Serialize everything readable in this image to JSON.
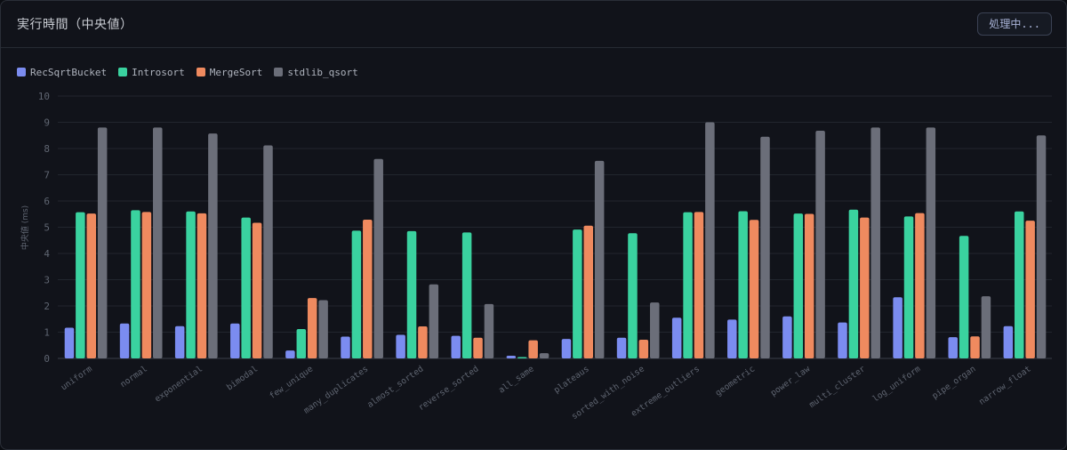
{
  "header": {
    "title": "実行時間（中央値）",
    "status_button": "処理中..."
  },
  "chart_data": {
    "type": "bar",
    "ylabel": "中央値 (ms)",
    "ylim": [
      0,
      10
    ],
    "yticks": [
      0,
      1,
      2,
      3,
      4,
      5,
      6,
      7,
      8,
      9,
      10
    ],
    "grid": true,
    "legend_position": "top-left",
    "categories": [
      "uniform",
      "normal",
      "exponential",
      "bimodal",
      "few_unique",
      "many_duplicates",
      "almost_sorted",
      "reverse_sorted",
      "all_same",
      "plateaus",
      "sorted_with_noise",
      "extreme_outliers",
      "geometric",
      "power_law",
      "multi_cluster",
      "log_uniform",
      "pipe_organ",
      "narrow_float"
    ],
    "series": [
      {
        "name": "RecSqrtBucket",
        "color": "#7b8cf0",
        "values": [
          1.17,
          1.33,
          1.23,
          1.33,
          0.3,
          0.83,
          0.9,
          0.86,
          0.1,
          0.74,
          0.79,
          1.55,
          1.48,
          1.6,
          1.37,
          2.33,
          0.81,
          1.23
        ]
      },
      {
        "name": "Introsort",
        "color": "#3ad29f",
        "values": [
          5.57,
          5.65,
          5.6,
          5.37,
          1.12,
          4.87,
          4.85,
          4.8,
          0.05,
          4.91,
          4.77,
          5.57,
          5.61,
          5.52,
          5.67,
          5.41,
          4.67,
          5.6
        ]
      },
      {
        "name": "MergeSort",
        "color": "#ef8a5f",
        "values": [
          5.52,
          5.58,
          5.53,
          5.17,
          2.3,
          5.29,
          1.22,
          0.79,
          0.69,
          5.06,
          0.71,
          5.58,
          5.28,
          5.51,
          5.37,
          5.54,
          0.84,
          5.25
        ]
      },
      {
        "name": "stdlib_qsort",
        "color": "#6b6e79",
        "values": [
          8.8,
          8.8,
          8.57,
          8.12,
          2.22,
          7.6,
          2.82,
          2.07,
          0.2,
          7.53,
          2.13,
          9.0,
          8.45,
          8.68,
          8.8,
          8.8,
          2.37,
          8.5
        ]
      }
    ]
  }
}
